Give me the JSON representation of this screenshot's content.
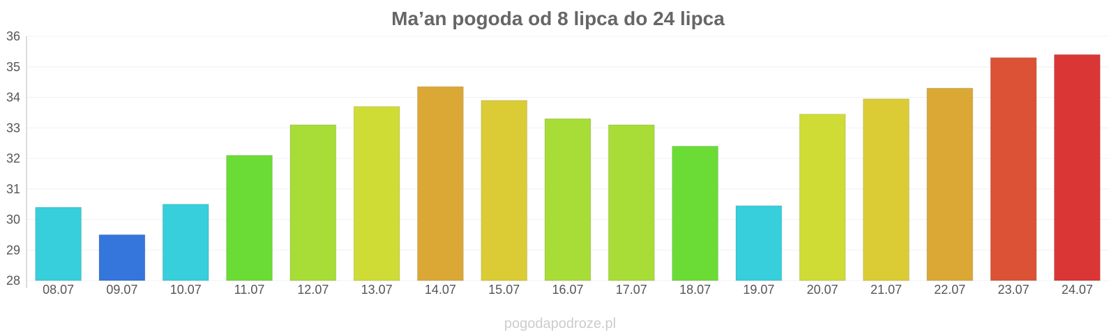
{
  "chart_data": {
    "type": "bar",
    "title": "Ma’an pogoda od 8 lipca do 24 lipca",
    "categories": [
      "08.07",
      "09.07",
      "10.07",
      "11.07",
      "12.07",
      "13.07",
      "14.07",
      "15.07",
      "16.07",
      "17.07",
      "18.07",
      "19.07",
      "20.07",
      "21.07",
      "22.07",
      "23.07",
      "24.07"
    ],
    "values": [
      30.4,
      29.5,
      30.5,
      32.1,
      33.1,
      33.7,
      34.35,
      33.9,
      33.3,
      33.1,
      32.4,
      30.45,
      33.45,
      33.95,
      34.3,
      35.3,
      35.4
    ],
    "colors": [
      "#36cfdb",
      "#3476db",
      "#36cfdb",
      "#6bdc36",
      "#a8dc36",
      "#cfdc36",
      "#dba836",
      "#dbcc36",
      "#a8dc36",
      "#a8dc36",
      "#6bdc36",
      "#36cfdb",
      "#cfdc36",
      "#dbcc36",
      "#dba836",
      "#db5236",
      "#db3636"
    ],
    "ylim": [
      28,
      36
    ],
    "yticks": [
      28,
      29,
      30,
      31,
      32,
      33,
      34,
      35,
      36
    ],
    "xlabel": "",
    "ylabel": "",
    "grid": true,
    "legend": "none"
  },
  "watermark": "pogodapodroze.pl"
}
